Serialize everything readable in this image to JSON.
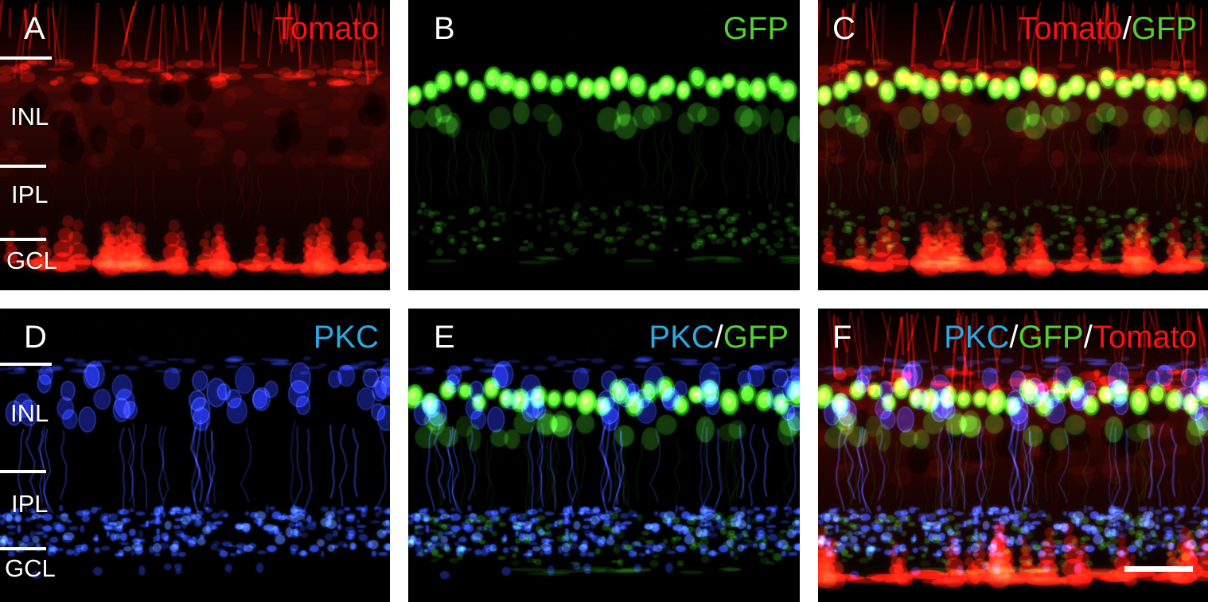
{
  "colors": {
    "tomato": "#f61414",
    "gfp": "#53d02f",
    "pkc": "#2aa9e1",
    "white": "#ffffff",
    "panel_background": "#000000",
    "page_background": "#ffffff"
  },
  "layer_labels": [
    "INL",
    "IPL",
    "GCL"
  ],
  "panels": [
    {
      "letter": "A",
      "row": 0,
      "col": 0,
      "channels": [
        "tomato"
      ],
      "label_parts": [
        {
          "text": "Tomato",
          "color": "tomato"
        }
      ],
      "show_layer_labels": true,
      "show_scale_bar": false
    },
    {
      "letter": "B",
      "row": 0,
      "col": 1,
      "channels": [
        "gfp"
      ],
      "label_parts": [
        {
          "text": "GFP",
          "color": "gfp"
        }
      ],
      "show_layer_labels": false,
      "show_scale_bar": false
    },
    {
      "letter": "C",
      "row": 0,
      "col": 2,
      "channels": [
        "tomato",
        "gfp"
      ],
      "label_parts": [
        {
          "text": "Tomato",
          "color": "tomato"
        },
        {
          "text": "/",
          "color": "white"
        },
        {
          "text": "GFP",
          "color": "gfp"
        }
      ],
      "show_layer_labels": false,
      "show_scale_bar": false
    },
    {
      "letter": "D",
      "row": 1,
      "col": 0,
      "channels": [
        "pkc"
      ],
      "label_parts": [
        {
          "text": "PKC",
          "color": "pkc"
        }
      ],
      "show_layer_labels": true,
      "show_scale_bar": false
    },
    {
      "letter": "E",
      "row": 1,
      "col": 1,
      "channels": [
        "pkc",
        "gfp"
      ],
      "label_parts": [
        {
          "text": "PKC",
          "color": "pkc"
        },
        {
          "text": "/",
          "color": "white"
        },
        {
          "text": "GFP",
          "color": "gfp"
        }
      ],
      "show_layer_labels": false,
      "show_scale_bar": false
    },
    {
      "letter": "F",
      "row": 1,
      "col": 2,
      "channels": [
        "pkc",
        "gfp",
        "tomato"
      ],
      "label_parts": [
        {
          "text": "PKC",
          "color": "pkc"
        },
        {
          "text": "/",
          "color": "white"
        },
        {
          "text": "GFP",
          "color": "gfp"
        },
        {
          "text": "/",
          "color": "white"
        },
        {
          "text": "Tomato",
          "color": "tomato"
        }
      ],
      "show_layer_labels": false,
      "show_scale_bar": true
    }
  ]
}
